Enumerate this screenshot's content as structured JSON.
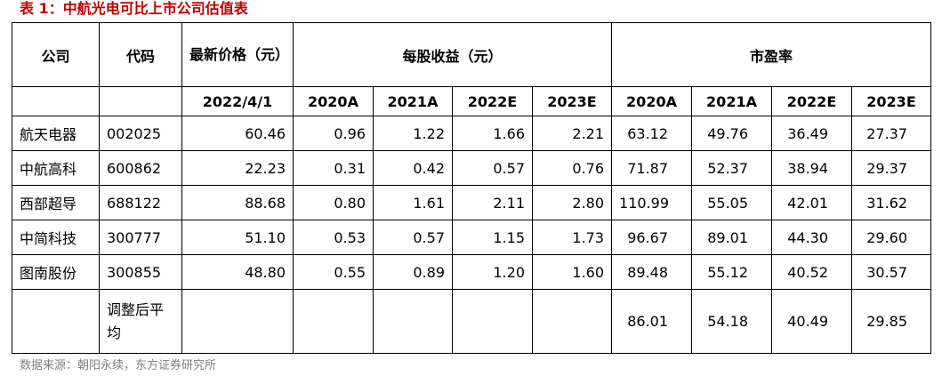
{
  "title": "表 1：中航光电可比上市公司估值表",
  "header": {
    "company": "公司",
    "code": "代码",
    "price": "最新价格（元）",
    "eps_group": "每股收益（元）",
    "pe_group": "市盈率",
    "price_date": "2022/4/1",
    "years": [
      "2020A",
      "2021A",
      "2022E",
      "2023E"
    ]
  },
  "rows": [
    {
      "company": "航天电器",
      "code": "002025",
      "price": "60.46",
      "eps": [
        "0.96",
        "1.22",
        "1.66",
        "2.21"
      ],
      "pe": [
        "63.12",
        "49.76",
        "36.49",
        "27.37"
      ]
    },
    {
      "company": "中航高科",
      "code": "600862",
      "price": "22.23",
      "eps": [
        "0.31",
        "0.42",
        "0.57",
        "0.76"
      ],
      "pe": [
        "71.87",
        "52.37",
        "38.94",
        "29.37"
      ]
    },
    {
      "company": "西部超导",
      "code": "688122",
      "price": "88.68",
      "eps": [
        "0.80",
        "1.61",
        "2.11",
        "2.80"
      ],
      "pe": [
        "110.99",
        "55.05",
        "42.01",
        "31.62"
      ]
    },
    {
      "company": "中简科技",
      "code": "300777",
      "price": "51.10",
      "eps": [
        "0.53",
        "0.57",
        "1.15",
        "1.73"
      ],
      "pe": [
        "96.67",
        "89.01",
        "44.30",
        "29.60"
      ]
    },
    {
      "company": "图南股份",
      "code": "300855",
      "price": "48.80",
      "eps": [
        "0.55",
        "0.89",
        "1.20",
        "1.60"
      ],
      "pe": [
        "89.48",
        "55.12",
        "40.52",
        "30.57"
      ]
    }
  ],
  "average": {
    "label": "调整后平均",
    "pe": [
      "86.01",
      "54.18",
      "40.49",
      "29.85"
    ]
  },
  "source": "数据来源：朝阳永续，东方证券研究所"
}
